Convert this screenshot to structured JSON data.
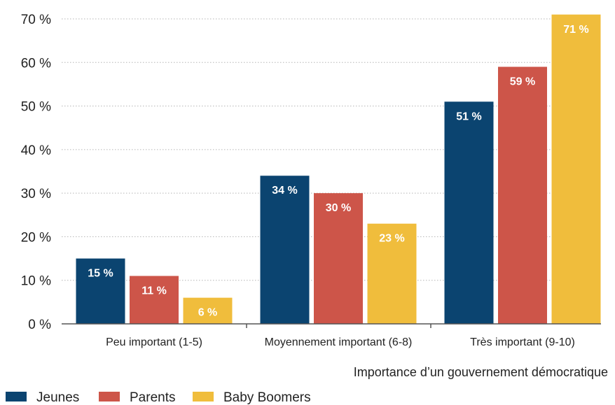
{
  "chart_data": {
    "type": "bar",
    "xlabel": "Importance d’un gouvernement démocratique",
    "ylabel": "",
    "categories": [
      "Peu important (1-5)",
      "Moyennement important (6-8)",
      "Très important (9-10)"
    ],
    "ylim": [
      0,
      70
    ],
    "yticks": [
      "0 %",
      "10 %",
      "20 %",
      "30 %",
      "40 %",
      "50 %",
      "60 %",
      "70 %"
    ],
    "grid": true,
    "legend_position": "bottom-left",
    "series": [
      {
        "name": "Jeunes",
        "color": "#0b4470",
        "values": [
          15,
          34,
          51
        ],
        "labels": [
          "15 %",
          "34 %",
          "51 %"
        ]
      },
      {
        "name": "Parents",
        "color": "#cd5549",
        "values": [
          11,
          30,
          59
        ],
        "labels": [
          "11 %",
          "30 %",
          "59 %"
        ]
      },
      {
        "name": "Baby Boomers",
        "color": "#f0bd3c",
        "values": [
          6,
          23,
          71
        ],
        "labels": [
          "6 %",
          "23 %",
          "71 %"
        ]
      }
    ]
  }
}
